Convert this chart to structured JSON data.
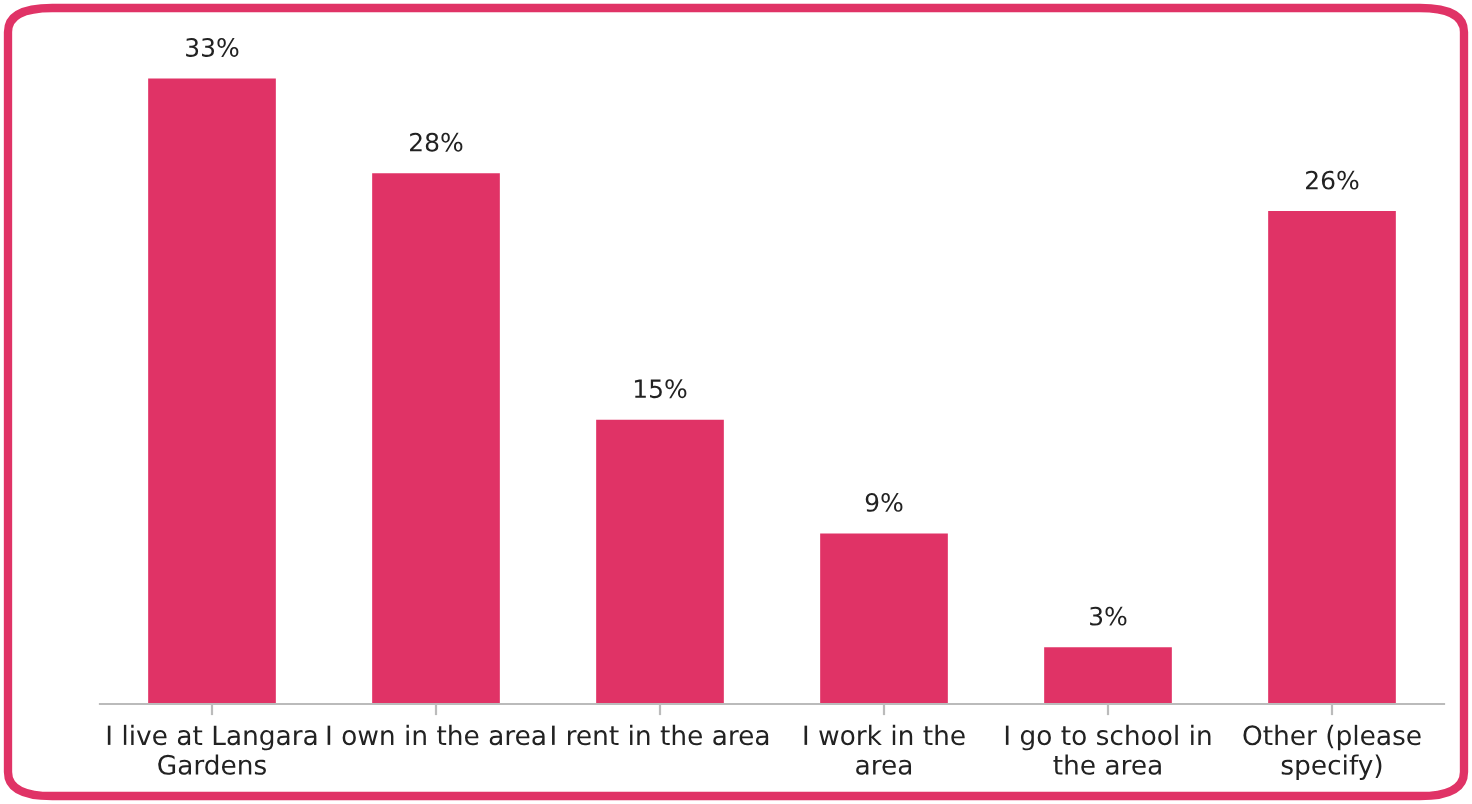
{
  "chart_data": {
    "type": "bar",
    "categories": [
      "I live at Langara\nGardens",
      "I own in the area",
      "I rent in the area",
      "I work in the\narea",
      "I go to school in\nthe area",
      "Other (please\nspecify)"
    ],
    "values": [
      33,
      28,
      15,
      9,
      3,
      26
    ],
    "value_labels": [
      "33%",
      "28%",
      "15%",
      "9%",
      "3%",
      "26%"
    ],
    "color": "#e03366",
    "grid": false,
    "legend": false
  }
}
